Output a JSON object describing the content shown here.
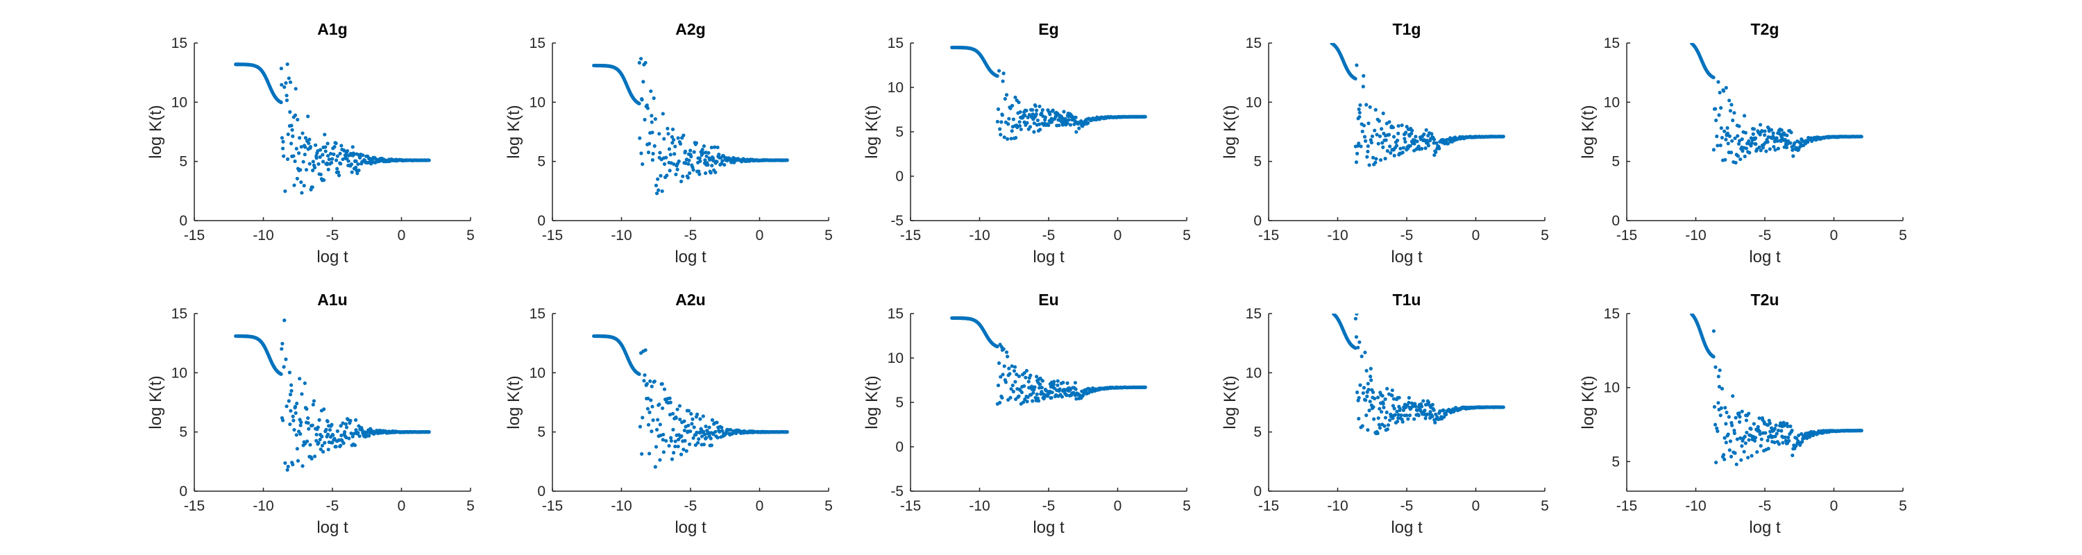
{
  "figure": {
    "marker_color": "#0072bd",
    "axis_color": "#262626"
  },
  "chart_data": [
    {
      "type": "scatter",
      "title": "A1g",
      "xlabel": "log t",
      "ylabel": "log K(t)",
      "xlim": [
        -15,
        5
      ],
      "ylim": [
        0,
        15
      ],
      "xticks": [
        -15,
        -10,
        -5,
        0,
        5
      ],
      "yticks": [
        0,
        5,
        10,
        15
      ],
      "grid": false,
      "plateau": 13.2,
      "tail": 5.1,
      "shape": "mixed",
      "samples": {
        "x": [
          -12,
          -10,
          -9,
          -8.5,
          -8,
          -7.5,
          -7,
          -6.5,
          -6,
          -5,
          -4,
          -3,
          -2,
          -1,
          0,
          1,
          2
        ],
        "y": [
          13.2,
          13,
          12,
          10,
          9.6,
          7,
          5,
          4,
          3,
          5.5,
          5.2,
          5.1,
          5.1,
          5.1,
          5.1,
          5.1,
          5.1
        ]
      }
    },
    {
      "type": "scatter",
      "title": "A2g",
      "xlabel": "log t",
      "ylabel": "log K(t)",
      "xlim": [
        -15,
        5
      ],
      "ylim": [
        0,
        15
      ],
      "xticks": [
        -15,
        -10,
        -5,
        0,
        5
      ],
      "yticks": [
        0,
        5,
        10,
        15
      ],
      "grid": false,
      "plateau": 13.1,
      "tail": 5.1,
      "shape": "mixed",
      "samples": {
        "x": [
          -12,
          -10,
          -9,
          -8.5,
          -8,
          -7.5,
          -7,
          -6.5,
          -6,
          -5,
          -4,
          -3,
          -2,
          -1,
          0,
          1,
          2
        ],
        "y": [
          13.1,
          12.9,
          12,
          10,
          9.4,
          7,
          5,
          4,
          3,
          5.5,
          5.2,
          5.1,
          5.1,
          5.1,
          5.1,
          5.1,
          5.1
        ]
      }
    },
    {
      "type": "scatter",
      "title": "Eg",
      "xlabel": "log t",
      "ylabel": "log K(t)",
      "xlim": [
        -15,
        5
      ],
      "ylim": [
        -5,
        15
      ],
      "xticks": [
        -15,
        -10,
        -5,
        0,
        5
      ],
      "yticks": [
        -5,
        0,
        5,
        10,
        15
      ],
      "grid": false,
      "plateau": 14.5,
      "tail": 6.7,
      "shape": "lower-spread",
      "samples": {
        "x": [
          -12,
          -10,
          -9,
          -8.5,
          -8,
          -7,
          -6,
          -5,
          -4,
          -3,
          -2,
          -1,
          0,
          1,
          2
        ],
        "y": [
          14.5,
          14.2,
          13,
          11,
          10.8,
          7,
          5,
          5,
          5.5,
          6,
          6.4,
          6.6,
          6.7,
          6.7,
          6.7
        ]
      }
    },
    {
      "type": "scatter",
      "title": "T1g",
      "xlabel": "log t",
      "ylabel": "log K(t)",
      "xlim": [
        -15,
        5
      ],
      "ylim": [
        0,
        15
      ],
      "xticks": [
        -15,
        -10,
        -5,
        0,
        5
      ],
      "yticks": [
        0,
        5,
        10,
        15
      ],
      "grid": false,
      "plateau": 15.2,
      "tail": 7.1,
      "shape": "lower-spread",
      "samples": {
        "x": [
          -12,
          -10,
          -9,
          -8.5,
          -8,
          -7,
          -6,
          -5,
          -4,
          -3,
          -2,
          -1,
          0,
          1,
          2
        ],
        "y": [
          15.2,
          15,
          14,
          12,
          11.6,
          8,
          5.5,
          5,
          5.5,
          6.3,
          6.7,
          7,
          7.1,
          7.1,
          7.1
        ]
      }
    },
    {
      "type": "scatter",
      "title": "T2g",
      "xlabel": "log t",
      "ylabel": "log K(t)",
      "xlim": [
        -15,
        5
      ],
      "ylim": [
        0,
        15
      ],
      "xticks": [
        -15,
        -10,
        -5,
        0,
        5
      ],
      "yticks": [
        0,
        5,
        10,
        15
      ],
      "grid": false,
      "plateau": 15.3,
      "tail": 7.1,
      "shape": "lower-spread",
      "samples": {
        "x": [
          -12,
          -10,
          -9,
          -8.5,
          -8,
          -7,
          -6,
          -5,
          -4,
          -3,
          -2,
          -1,
          0,
          1,
          2
        ],
        "y": [
          15.3,
          15,
          14,
          12,
          11.7,
          8,
          5.5,
          5,
          5.5,
          6.3,
          6.7,
          7,
          7.1,
          7.1,
          7.1
        ]
      }
    },
    {
      "type": "scatter",
      "title": "A1u",
      "xlabel": "log t",
      "ylabel": "log K(t)",
      "xlim": [
        -15,
        5
      ],
      "ylim": [
        0,
        15
      ],
      "xticks": [
        -15,
        -10,
        -5,
        0,
        5
      ],
      "yticks": [
        0,
        5,
        10,
        15
      ],
      "grid": false,
      "plateau": 13.1,
      "tail": 5,
      "shape": "mixed",
      "samples": {
        "x": [
          -12,
          -10,
          -9,
          -8.5,
          -8,
          -7.5,
          -7,
          -6.5,
          -6,
          -5,
          -4,
          -3,
          -2,
          -1,
          0,
          1,
          2
        ],
        "y": [
          13.1,
          12.9,
          12,
          10,
          9.2,
          7,
          5,
          4,
          3,
          5.5,
          5.2,
          5,
          5,
          5,
          5,
          5,
          5
        ]
      }
    },
    {
      "type": "scatter",
      "title": "A2u",
      "xlabel": "log t",
      "ylabel": "log K(t)",
      "xlim": [
        -15,
        5
      ],
      "ylim": [
        0,
        15
      ],
      "xticks": [
        -15,
        -10,
        -5,
        0,
        5
      ],
      "yticks": [
        0,
        5,
        10,
        15
      ],
      "grid": false,
      "plateau": 13.1,
      "tail": 5,
      "shape": "mixed",
      "samples": {
        "x": [
          -12,
          -10,
          -9,
          -8.5,
          -8,
          -7.5,
          -7,
          -6.5,
          -6,
          -5,
          -4,
          -3,
          -2,
          -1,
          0,
          1,
          2
        ],
        "y": [
          13.1,
          12.9,
          12,
          10,
          9.4,
          7,
          5,
          4,
          3,
          5.5,
          5.2,
          5,
          5,
          5,
          5,
          5,
          5
        ]
      }
    },
    {
      "type": "scatter",
      "title": "Eu",
      "xlabel": "log t",
      "ylabel": "log K(t)",
      "xlim": [
        -15,
        5
      ],
      "ylim": [
        -5,
        15
      ],
      "xticks": [
        -15,
        -10,
        -5,
        0,
        5
      ],
      "yticks": [
        -5,
        0,
        5,
        10,
        15
      ],
      "grid": false,
      "plateau": 14.5,
      "tail": 6.7,
      "shape": "lower-spread",
      "samples": {
        "x": [
          -12,
          -10,
          -9,
          -8.5,
          -8,
          -7,
          -6,
          -5,
          -4,
          -3,
          -2,
          -1,
          0,
          1,
          2
        ],
        "y": [
          14.5,
          14.2,
          13,
          11,
          10.6,
          7,
          5,
          5,
          5.5,
          6,
          6.4,
          6.6,
          6.7,
          6.7,
          6.7
        ]
      }
    },
    {
      "type": "scatter",
      "title": "T1u",
      "xlabel": "log t",
      "ylabel": "log K(t)",
      "xlim": [
        -15,
        5
      ],
      "ylim": [
        0,
        15
      ],
      "xticks": [
        -15,
        -10,
        -5,
        0,
        5
      ],
      "yticks": [
        0,
        5,
        10,
        15
      ],
      "grid": false,
      "plateau": 15.3,
      "tail": 7.1,
      "shape": "lower-spread",
      "samples": {
        "x": [
          -12,
          -10,
          -9,
          -8.5,
          -8,
          -7,
          -6,
          -5,
          -4,
          -3,
          -2,
          -1,
          0,
          1,
          2
        ],
        "y": [
          15.3,
          15,
          14,
          12,
          11.8,
          8,
          5.5,
          5,
          5.5,
          6.3,
          6.7,
          7,
          7.1,
          7.1,
          7.1
        ]
      }
    },
    {
      "type": "scatter",
      "title": "T2u",
      "xlabel": "log t",
      "ylabel": "log K(t)",
      "xlim": [
        -15,
        5
      ],
      "ylim": [
        3,
        15
      ],
      "xticks": [
        -15,
        -10,
        -5,
        0,
        5
      ],
      "yticks": [
        5,
        10,
        15
      ],
      "grid": false,
      "plateau": 15.3,
      "tail": 7.1,
      "shape": "lower-spread",
      "samples": {
        "x": [
          -12,
          -10,
          -9,
          -8.5,
          -8,
          -7,
          -6,
          -5,
          -4,
          -3,
          -2,
          -1,
          0,
          1,
          2
        ],
        "y": [
          15.3,
          15,
          14,
          12,
          11.7,
          8,
          5.5,
          5,
          5.5,
          6.3,
          6.7,
          7,
          7.1,
          7.1,
          7.1
        ]
      }
    }
  ]
}
